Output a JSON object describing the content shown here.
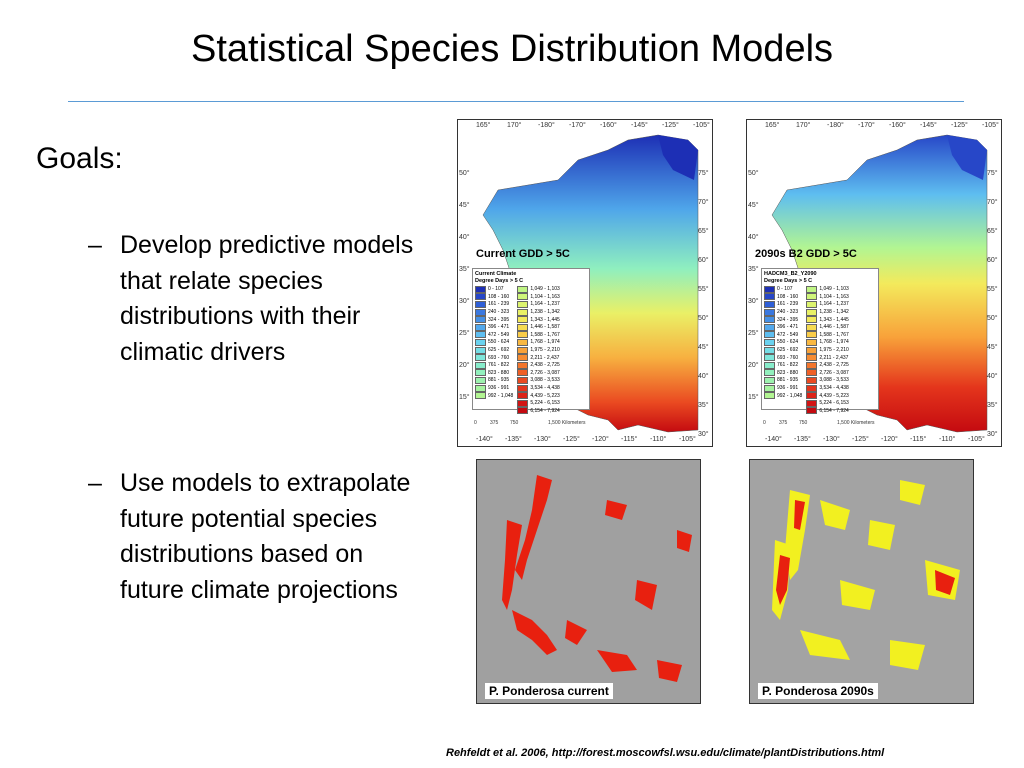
{
  "slide": {
    "title": "Statistical Species Distribution Models",
    "goals_heading": "Goals:",
    "bullets": [
      {
        "dash": "–",
        "text": "Develop predictive models that relate species distributions with their climatic drivers"
      },
      {
        "dash": "–",
        "text": "Use models to extrapolate future potential species distributions based on future climate projections"
      }
    ],
    "citation": "Rehfeldt et al. 2006, http://forest.moscowfsl.wsu.edu/climate/plantDistributions.html"
  },
  "maps": [
    {
      "caption": "Current GDD > 5C",
      "legend_title": "Current Climate",
      "legend_subtitle": "Degree Days > 5 C"
    },
    {
      "caption": "2090s B2 GDD > 5C",
      "legend_title": "HADCM3_B2_Y2090",
      "legend_subtitle": "Degree Days > 5 C"
    }
  ],
  "legend": {
    "col1": [
      {
        "label": "0 - 107",
        "color": "#1d2fb5"
      },
      {
        "label": "108 - 160",
        "color": "#2747c8"
      },
      {
        "label": "161 - 239",
        "color": "#2f5fd6"
      },
      {
        "label": "240 - 323",
        "color": "#3a78e0"
      },
      {
        "label": "324 - 395",
        "color": "#4590e6"
      },
      {
        "label": "396 - 471",
        "color": "#52a8ec"
      },
      {
        "label": "472 - 549",
        "color": "#5ebef0"
      },
      {
        "label": "550 - 624",
        "color": "#6ad2ef"
      },
      {
        "label": "625 - 692",
        "color": "#74dde6"
      },
      {
        "label": "693 - 760",
        "color": "#7fe6da"
      },
      {
        "label": "761 - 822",
        "color": "#88eccb"
      },
      {
        "label": "823 - 880",
        "color": "#92f0bd"
      },
      {
        "label": "881 - 935",
        "color": "#9cf2ae"
      },
      {
        "label": "936 - 991",
        "color": "#a6f4a0"
      },
      {
        "label": "992 - 1,048",
        "color": "#b2f592"
      }
    ],
    "col2": [
      {
        "label": "1,049 - 1,103",
        "color": "#c0f584"
      },
      {
        "label": "1,104 - 1,163",
        "color": "#cff57a"
      },
      {
        "label": "1,164 - 1,237",
        "color": "#ddf46f"
      },
      {
        "label": "1,238 - 1,342",
        "color": "#e9f166"
      },
      {
        "label": "1,343 - 1,445",
        "color": "#f3ea5c"
      },
      {
        "label": "1,446 - 1,587",
        "color": "#f7dc52"
      },
      {
        "label": "1,588 - 1,767",
        "color": "#f9cc49"
      },
      {
        "label": "1,768 - 1,974",
        "color": "#f9b841"
      },
      {
        "label": "1,975 - 2,210",
        "color": "#f8a23a"
      },
      {
        "label": "2,211 - 2,437",
        "color": "#f68c33"
      },
      {
        "label": "2,438 - 2,725",
        "color": "#f3762d"
      },
      {
        "label": "2,726 - 3,087",
        "color": "#ef6027"
      },
      {
        "label": "3,088 - 3,533",
        "color": "#ea4a21"
      },
      {
        "label": "3,534 - 4,438",
        "color": "#e4351c"
      },
      {
        "label": "4,439 - 5,223",
        "color": "#dc2318"
      },
      {
        "label": "5,224 - 6,153",
        "color": "#d21414"
      },
      {
        "label": "6,154 - 7,924",
        "color": "#c40a10"
      }
    ]
  },
  "lon_top": [
    "165°",
    "170°",
    "-180°",
    "-170°",
    "-160°",
    "-145°",
    "-125°",
    "-105°"
  ],
  "lon_bottom": [
    "-140°",
    "-135°",
    "-130°",
    "-125°",
    "-120°",
    "-115°",
    "-110°",
    "-105°"
  ],
  "lat_left": [
    "50°",
    "45°",
    "40°",
    "35°",
    "30°",
    "25°",
    "20°",
    "15°"
  ],
  "lat_right": [
    "75°",
    "70°",
    "65°",
    "60°",
    "55°",
    "50°",
    "45°",
    "40°",
    "35°",
    "30°"
  ],
  "scale_labels": [
    "0",
    "375",
    "750",
    "1,500 Kilometers"
  ],
  "distributions": [
    {
      "caption": "P. Ponderosa current",
      "occurrence_color": "#e8200f"
    },
    {
      "caption": "P. Ponderosa 2090s",
      "occurrence_color": "#f2f020",
      "core_color": "#e8200f"
    }
  ]
}
